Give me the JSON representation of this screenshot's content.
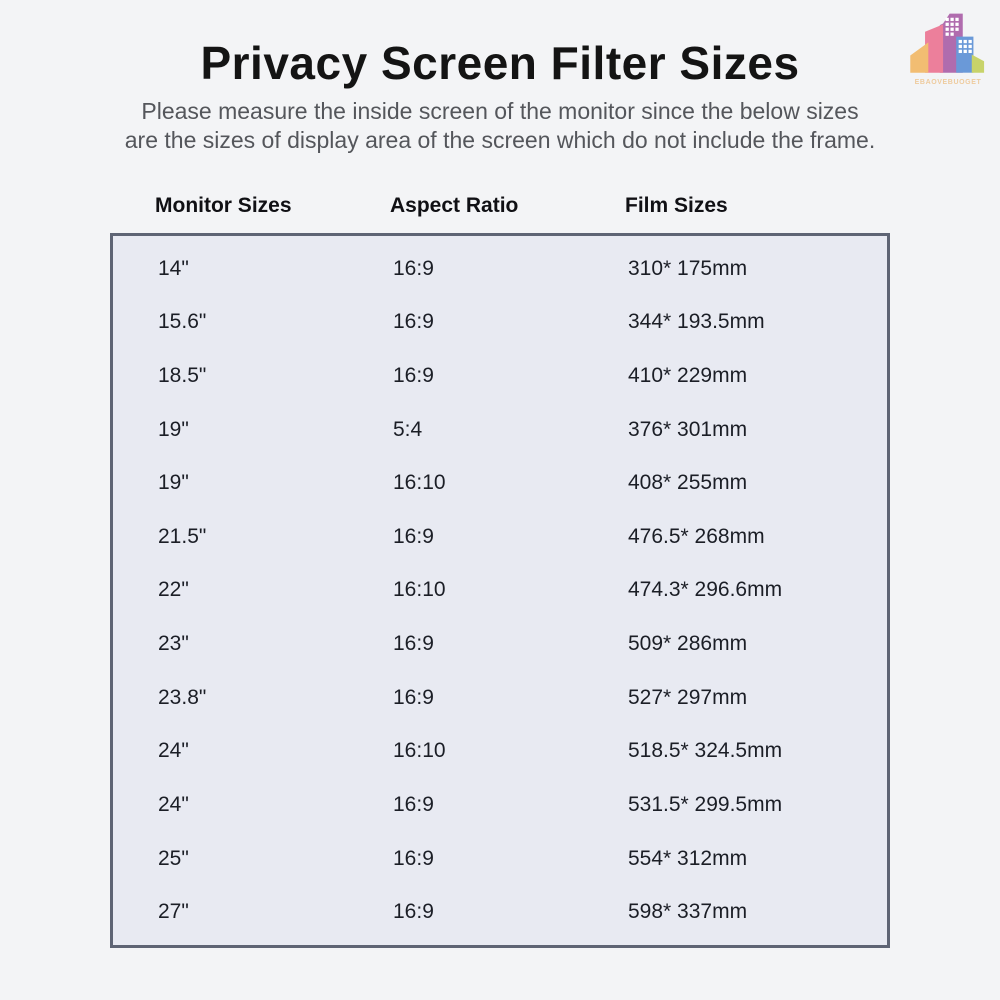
{
  "header": {
    "title": "Privacy Screen Filter Sizes",
    "subtitle_line1": "Please measure the inside screen of the monitor since the below sizes",
    "subtitle_line2": "are the sizes of display area of the screen which do not include the frame."
  },
  "logo": {
    "icon": "city-buildings-icon",
    "brand_text": "EBAOVEBUOGET",
    "colors": {
      "orange": "#f2bd72",
      "pink": "#ec7f9b",
      "purple": "#b06cae",
      "blue": "#6a99d8",
      "green": "#c8d36a",
      "text": "#eecb9e"
    }
  },
  "table": {
    "columns": [
      "Monitor Sizes",
      "Aspect Ratio",
      "Film Sizes"
    ],
    "rows": [
      [
        "14\"",
        "16:9",
        "310* 175mm"
      ],
      [
        "15.6\"",
        "16:9",
        "344* 193.5mm"
      ],
      [
        "18.5\"",
        "16:9",
        "410* 229mm"
      ],
      [
        "19\"",
        "5:4",
        "376* 301mm"
      ],
      [
        "19\"",
        "16:10",
        "408* 255mm"
      ],
      [
        "21.5\"",
        "16:9",
        "476.5* 268mm"
      ],
      [
        "22\"",
        "16:10",
        "474.3* 296.6mm"
      ],
      [
        "23\"",
        "16:9",
        "509* 286mm"
      ],
      [
        "23.8\"",
        "16:9",
        "527* 297mm"
      ],
      [
        "24\"",
        "16:10",
        "518.5* 324.5mm"
      ],
      [
        "24\"",
        "16:9",
        "531.5* 299.5mm"
      ],
      [
        "25\"",
        "16:9",
        "554* 312mm"
      ],
      [
        "27\"",
        "16:9",
        "598* 337mm"
      ]
    ],
    "style": {
      "page_background": "#f3f4f6",
      "table_fill": "#e8eaf2",
      "table_border": "#5e6474"
    }
  }
}
